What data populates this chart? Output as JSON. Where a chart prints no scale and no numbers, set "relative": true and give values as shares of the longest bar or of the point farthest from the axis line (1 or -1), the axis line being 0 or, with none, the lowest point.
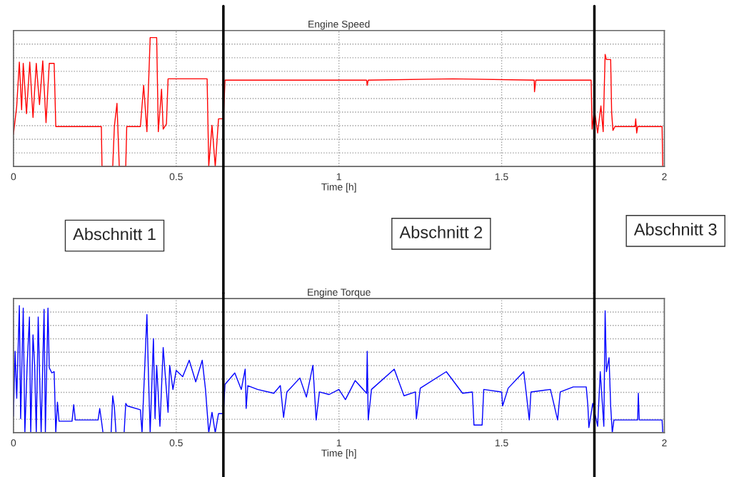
{
  "chart_data": [
    {
      "type": "line",
      "title": "Engine Speed",
      "xlabel": "Time [h]",
      "relative": true,
      "xlim": [
        0,
        2
      ],
      "xticks": [
        0,
        0.5,
        1,
        1.5,
        2
      ],
      "tick_labels": "x",
      "grid": true,
      "legend": false,
      "annotations": [
        "Abschnitt 1",
        "Abschnitt 2",
        "Abschnitt 3"
      ],
      "ref_lines": [
        {
          "axis": "x",
          "value": 0.645,
          "color": "#000000"
        },
        {
          "axis": "x",
          "value": 1.785,
          "color": "#000000"
        }
      ],
      "series": [
        {
          "color": "#ff0000",
          "x": [
            0,
            0.01,
            0.018,
            0.025,
            0.03,
            0.04,
            0.05,
            0.06,
            0.07,
            0.08,
            0.09,
            0.1,
            0.11,
            0.125,
            0.13,
            0.27,
            0.272,
            0.305,
            0.31,
            0.318,
            0.325,
            0.345,
            0.348,
            0.39,
            0.4,
            0.41,
            0.42,
            0.44,
            0.445,
            0.455,
            0.46,
            0.47,
            0.475,
            0.595,
            0.6,
            0.61,
            0.62,
            0.63,
            0.645,
            0.65,
            1.085,
            1.087,
            1.09,
            1.35,
            1.6,
            1.601,
            1.605,
            1.775,
            1.778,
            1.785,
            1.795,
            1.805,
            1.812,
            1.818,
            1.822,
            1.835,
            1.838,
            1.842,
            1.848,
            1.91,
            1.912,
            1.915,
            1.918,
            1.993,
            1.995
          ],
          "values": [
            0.25,
            0.47,
            0.81,
            0.44,
            0.8,
            0.41,
            0.81,
            0.38,
            0.8,
            0.48,
            0.82,
            0.34,
            0.8,
            0.8,
            0.31,
            0.31,
            0,
            0,
            0.31,
            0.49,
            0,
            0,
            0.31,
            0.31,
            0.63,
            0.27,
            1,
            1,
            0.27,
            0.6,
            0.29,
            0.33,
            0.68,
            0.68,
            0,
            0.32,
            0,
            0.37,
            0.37,
            0.67,
            0.67,
            0.63,
            0.67,
            0.68,
            0.67,
            0.58,
            0.67,
            0.67,
            0.29,
            0.44,
            0.26,
            0.47,
            0.27,
            0.87,
            0.83,
            0.83,
            0.42,
            0.28,
            0.31,
            0.31,
            0.37,
            0.26,
            0.31,
            0.31,
            0
          ]
        }
      ]
    },
    {
      "type": "line",
      "title": "Engine Torque",
      "xlabel": "Time [h]",
      "relative": true,
      "xlim": [
        0,
        2
      ],
      "xticks": [
        0,
        0.5,
        1,
        1.5,
        2
      ],
      "tick_labels": "x",
      "grid": true,
      "legend": false,
      "ref_lines": [
        {
          "axis": "x",
          "value": 0.645,
          "color": "#000000"
        },
        {
          "axis": "x",
          "value": 1.785,
          "color": "#000000"
        }
      ],
      "series": [
        {
          "color": "#0000ff",
          "x": [
            0,
            0.005,
            0.01,
            0.018,
            0.022,
            0.03,
            0.035,
            0.042,
            0.049,
            0.053,
            0.06,
            0.065,
            0.07,
            0.076,
            0.08,
            0.085,
            0.094,
            0.098,
            0.106,
            0.11,
            0.118,
            0.125,
            0.13,
            0.135,
            0.14,
            0.18,
            0.185,
            0.19,
            0.26,
            0.265,
            0.27,
            0.275,
            0.3,
            0.305,
            0.31,
            0.315,
            0.34,
            0.345,
            0.35,
            0.39,
            0.395,
            0.41,
            0.415,
            0.42,
            0.43,
            0.435,
            0.44,
            0.45,
            0.46,
            0.475,
            0.48,
            0.49,
            0.5,
            0.52,
            0.54,
            0.56,
            0.58,
            0.59,
            0.6,
            0.61,
            0.62,
            0.63,
            0.645,
            0.65,
            0.68,
            0.7,
            0.712,
            0.715,
            0.72,
            0.75,
            0.8,
            0.82,
            0.83,
            0.84,
            0.88,
            0.9,
            0.92,
            0.93,
            0.94,
            0.97,
            1.0,
            1.02,
            1.05,
            1.085,
            1.087,
            1.09,
            1.1,
            1.17,
            1.2,
            1.235,
            1.238,
            1.25,
            1.33,
            1.38,
            1.41,
            1.415,
            1.44,
            1.445,
            1.5,
            1.503,
            1.52,
            1.568,
            1.585,
            1.59,
            1.65,
            1.672,
            1.68,
            1.72,
            1.76,
            1.765,
            1.768,
            1.78,
            1.795,
            1.803,
            1.814,
            1.818,
            1.822,
            1.83,
            1.835,
            1.84,
            1.845,
            1.918,
            1.92,
            1.923,
            1.993,
            1.995
          ],
          "values": [
            0.13,
            0.64,
            0.27,
            1,
            0.11,
            0.98,
            0,
            0.53,
            0.91,
            0,
            0.77,
            0.53,
            0,
            0.91,
            0.48,
            0,
            0.97,
            0,
            0.98,
            0.51,
            0.47,
            0.48,
            0,
            0.24,
            0.09,
            0.09,
            0.22,
            0.1,
            0.1,
            0.19,
            0.1,
            0,
            0,
            0.29,
            0.2,
            0,
            0,
            0.23,
            0.21,
            0.18,
            0,
            0.93,
            0.43,
            0,
            0.74,
            0.11,
            0.53,
            0.05,
            0.67,
            0.16,
            0.53,
            0.34,
            0.49,
            0.44,
            0.57,
            0.4,
            0.57,
            0.34,
            0,
            0.16,
            0,
            0.15,
            0.15,
            0.38,
            0.47,
            0.34,
            0.5,
            0.19,
            0.37,
            0.34,
            0.31,
            0.37,
            0.12,
            0.32,
            0.43,
            0.28,
            0.53,
            0.1,
            0.32,
            0.3,
            0.34,
            0.26,
            0.41,
            0.31,
            0.64,
            0.1,
            0.34,
            0.5,
            0.29,
            0.32,
            0.11,
            0.35,
            0.48,
            0.31,
            0.32,
            0.06,
            0.06,
            0.34,
            0.32,
            0.21,
            0.35,
            0.48,
            0.1,
            0.32,
            0.34,
            0.1,
            0.32,
            0.36,
            0.36,
            0.21,
            0.04,
            0.23,
            0.05,
            0.48,
            0.05,
            0.96,
            0.48,
            0.59,
            0.21,
            0,
            0.1,
            0.1,
            0.31,
            0.1,
            0.1,
            0
          ]
        }
      ]
    }
  ]
}
